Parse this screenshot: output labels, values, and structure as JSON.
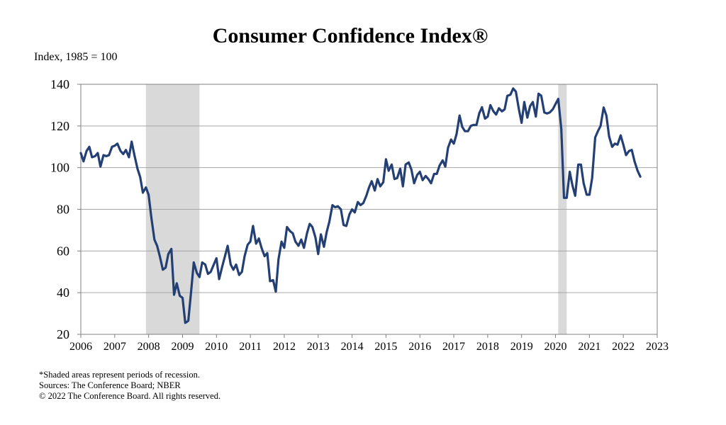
{
  "title": "Consumer Confidence Index®",
  "units_label": "Index, 1985 = 100",
  "notes": [
    "*Shaded areas represent periods of recession.",
    "Sources: The Conference Board; NBER",
    "© 2022 The Conference Board. All rights reserved."
  ],
  "colors": {
    "line": "#243f73",
    "recession": "#d9d9d9",
    "grid": "#a6a6a6",
    "axis": "#808080"
  },
  "chart_data": {
    "type": "line",
    "title": "Consumer Confidence Index®",
    "ylabel": "Index, 1985 = 100",
    "xlim": [
      2006,
      2023
    ],
    "ylim": [
      20,
      140
    ],
    "xticks": [
      2006,
      2007,
      2008,
      2009,
      2010,
      2011,
      2012,
      2013,
      2014,
      2015,
      2016,
      2017,
      2018,
      2019,
      2020,
      2021,
      2022,
      2023
    ],
    "yticks": [
      20,
      40,
      60,
      80,
      100,
      120,
      140
    ],
    "grid": "horizontal",
    "recessions": [
      {
        "start": 2007.92,
        "end": 2009.5
      },
      {
        "start": 2020.08,
        "end": 2020.33
      }
    ],
    "series": [
      {
        "points": [
          [
            2006.0,
            107.0
          ],
          [
            2006.08,
            103.0
          ],
          [
            2006.17,
            108.0
          ],
          [
            2006.25,
            110.0
          ],
          [
            2006.33,
            105.0
          ],
          [
            2006.42,
            105.5
          ],
          [
            2006.5,
            107.0
          ],
          [
            2006.58,
            100.5
          ],
          [
            2006.67,
            106.0
          ],
          [
            2006.75,
            105.5
          ],
          [
            2006.83,
            106.0
          ],
          [
            2006.92,
            110.0
          ],
          [
            2007.0,
            110.5
          ],
          [
            2007.08,
            111.5
          ],
          [
            2007.17,
            108.0
          ],
          [
            2007.25,
            106.5
          ],
          [
            2007.33,
            108.5
          ],
          [
            2007.42,
            105.0
          ],
          [
            2007.5,
            112.5
          ],
          [
            2007.58,
            106.0
          ],
          [
            2007.67,
            99.5
          ],
          [
            2007.75,
            95.5
          ],
          [
            2007.83,
            88.0
          ],
          [
            2007.92,
            90.5
          ],
          [
            2008.0,
            87.0
          ],
          [
            2008.08,
            76.0
          ],
          [
            2008.17,
            65.5
          ],
          [
            2008.25,
            62.5
          ],
          [
            2008.33,
            57.5
          ],
          [
            2008.42,
            51.0
          ],
          [
            2008.5,
            52.0
          ],
          [
            2008.58,
            58.5
          ],
          [
            2008.67,
            61.0
          ],
          [
            2008.75,
            39.0
          ],
          [
            2008.83,
            44.5
          ],
          [
            2008.92,
            38.5
          ],
          [
            2009.0,
            37.5
          ],
          [
            2009.08,
            25.5
          ],
          [
            2009.17,
            26.5
          ],
          [
            2009.25,
            40.0
          ],
          [
            2009.33,
            54.5
          ],
          [
            2009.42,
            49.5
          ],
          [
            2009.5,
            47.5
          ],
          [
            2009.58,
            54.5
          ],
          [
            2009.67,
            53.5
          ],
          [
            2009.75,
            49.0
          ],
          [
            2009.83,
            50.0
          ],
          [
            2009.92,
            53.5
          ],
          [
            2010.0,
            56.5
          ],
          [
            2010.08,
            46.5
          ],
          [
            2010.17,
            52.5
          ],
          [
            2010.25,
            57.5
          ],
          [
            2010.33,
            62.5
          ],
          [
            2010.42,
            53.5
          ],
          [
            2010.5,
            51.0
          ],
          [
            2010.58,
            53.5
          ],
          [
            2010.67,
            48.5
          ],
          [
            2010.75,
            50.0
          ],
          [
            2010.83,
            57.5
          ],
          [
            2010.92,
            63.0
          ],
          [
            2011.0,
            64.5
          ],
          [
            2011.08,
            72.0
          ],
          [
            2011.17,
            63.5
          ],
          [
            2011.25,
            66.0
          ],
          [
            2011.33,
            61.5
          ],
          [
            2011.42,
            57.5
          ],
          [
            2011.5,
            59.0
          ],
          [
            2011.58,
            45.5
          ],
          [
            2011.67,
            46.0
          ],
          [
            2011.75,
            40.5
          ],
          [
            2011.83,
            56.0
          ],
          [
            2011.92,
            64.5
          ],
          [
            2012.0,
            61.5
          ],
          [
            2012.08,
            71.5
          ],
          [
            2012.17,
            69.5
          ],
          [
            2012.25,
            68.5
          ],
          [
            2012.33,
            64.5
          ],
          [
            2012.42,
            62.5
          ],
          [
            2012.5,
            65.5
          ],
          [
            2012.58,
            61.5
          ],
          [
            2012.67,
            68.5
          ],
          [
            2012.75,
            73.0
          ],
          [
            2012.83,
            71.5
          ],
          [
            2012.92,
            66.5
          ],
          [
            2013.0,
            58.5
          ],
          [
            2013.08,
            68.0
          ],
          [
            2013.17,
            62.0
          ],
          [
            2013.25,
            69.0
          ],
          [
            2013.33,
            74.0
          ],
          [
            2013.42,
            82.0
          ],
          [
            2013.5,
            81.0
          ],
          [
            2013.58,
            81.5
          ],
          [
            2013.67,
            80.0
          ],
          [
            2013.75,
            72.5
          ],
          [
            2013.83,
            72.0
          ],
          [
            2013.92,
            77.5
          ],
          [
            2014.0,
            80.0
          ],
          [
            2014.08,
            78.5
          ],
          [
            2014.17,
            83.5
          ],
          [
            2014.25,
            82.0
          ],
          [
            2014.33,
            83.0
          ],
          [
            2014.42,
            86.5
          ],
          [
            2014.5,
            90.5
          ],
          [
            2014.58,
            93.5
          ],
          [
            2014.67,
            89.0
          ],
          [
            2014.75,
            94.5
          ],
          [
            2014.83,
            91.0
          ],
          [
            2014.92,
            93.0
          ],
          [
            2015.0,
            104.0
          ],
          [
            2015.08,
            98.5
          ],
          [
            2015.17,
            101.5
          ],
          [
            2015.25,
            94.5
          ],
          [
            2015.33,
            95.0
          ],
          [
            2015.42,
            99.5
          ],
          [
            2015.5,
            91.0
          ],
          [
            2015.58,
            101.5
          ],
          [
            2015.67,
            102.5
          ],
          [
            2015.75,
            99.0
          ],
          [
            2015.83,
            92.5
          ],
          [
            2015.92,
            96.5
          ],
          [
            2016.0,
            98.0
          ],
          [
            2016.08,
            94.0
          ],
          [
            2016.17,
            96.0
          ],
          [
            2016.25,
            94.5
          ],
          [
            2016.33,
            92.5
          ],
          [
            2016.42,
            97.0
          ],
          [
            2016.5,
            97.0
          ],
          [
            2016.58,
            101.0
          ],
          [
            2016.67,
            103.5
          ],
          [
            2016.75,
            100.5
          ],
          [
            2016.83,
            109.5
          ],
          [
            2016.92,
            113.5
          ],
          [
            2017.0,
            111.5
          ],
          [
            2017.08,
            116.0
          ],
          [
            2017.17,
            125.0
          ],
          [
            2017.25,
            119.5
          ],
          [
            2017.33,
            117.5
          ],
          [
            2017.42,
            117.5
          ],
          [
            2017.5,
            120.0
          ],
          [
            2017.58,
            120.5
          ],
          [
            2017.67,
            120.5
          ],
          [
            2017.75,
            126.0
          ],
          [
            2017.83,
            129.0
          ],
          [
            2017.92,
            123.5
          ],
          [
            2018.0,
            124.5
          ],
          [
            2018.08,
            130.0
          ],
          [
            2018.17,
            127.0
          ],
          [
            2018.25,
            125.5
          ],
          [
            2018.33,
            128.5
          ],
          [
            2018.42,
            127.0
          ],
          [
            2018.5,
            128.0
          ],
          [
            2018.58,
            134.5
          ],
          [
            2018.67,
            135.0
          ],
          [
            2018.75,
            138.0
          ],
          [
            2018.83,
            136.5
          ],
          [
            2018.92,
            128.0
          ],
          [
            2019.0,
            121.5
          ],
          [
            2019.08,
            131.5
          ],
          [
            2019.17,
            124.0
          ],
          [
            2019.25,
            129.5
          ],
          [
            2019.33,
            131.5
          ],
          [
            2019.42,
            124.5
          ],
          [
            2019.5,
            135.5
          ],
          [
            2019.58,
            134.5
          ],
          [
            2019.67,
            126.5
          ],
          [
            2019.75,
            126.0
          ],
          [
            2019.83,
            126.5
          ],
          [
            2019.92,
            128.0
          ],
          [
            2020.0,
            130.5
          ],
          [
            2020.08,
            133.0
          ],
          [
            2020.17,
            118.5
          ],
          [
            2020.25,
            85.5
          ],
          [
            2020.33,
            85.5
          ],
          [
            2020.42,
            98.0
          ],
          [
            2020.5,
            91.5
          ],
          [
            2020.58,
            86.5
          ],
          [
            2020.67,
            101.5
          ],
          [
            2020.75,
            101.5
          ],
          [
            2020.83,
            92.5
          ],
          [
            2020.92,
            87.0
          ],
          [
            2021.0,
            87.0
          ],
          [
            2021.08,
            95.0
          ],
          [
            2021.17,
            114.5
          ],
          [
            2021.25,
            117.5
          ],
          [
            2021.33,
            120.0
          ],
          [
            2021.42,
            128.9
          ],
          [
            2021.5,
            125.0
          ],
          [
            2021.58,
            115.0
          ],
          [
            2021.67,
            110.0
          ],
          [
            2021.75,
            111.5
          ],
          [
            2021.83,
            111.0
          ],
          [
            2021.92,
            115.5
          ],
          [
            2022.0,
            111.0
          ],
          [
            2022.08,
            106.0
          ],
          [
            2022.17,
            108.0
          ],
          [
            2022.25,
            108.5
          ],
          [
            2022.33,
            103.0
          ],
          [
            2022.42,
            98.5
          ],
          [
            2022.5,
            95.7
          ]
        ]
      }
    ]
  }
}
